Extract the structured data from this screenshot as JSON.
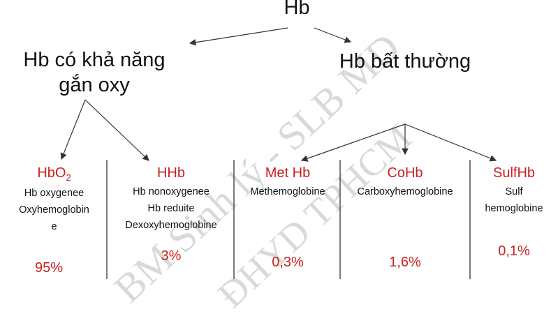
{
  "root": "Hb",
  "left_branch": {
    "line1": "Hb có khả năng",
    "line2": "gắn oxy"
  },
  "right_branch": "Hb bất thường",
  "columns": [
    {
      "title_main": "HbO",
      "title_sub": "2",
      "desc": [
        "Hb oxygenee",
        "Oxyhemoglobin",
        "e"
      ],
      "percent": "95%"
    },
    {
      "title_main": "HHb",
      "title_sub": "",
      "desc": [
        "Hb nonoxygenee",
        "Hb reduite",
        "Dexoxyhemoglobine"
      ],
      "percent": "3%"
    },
    {
      "title_main": "Met Hb",
      "title_sub": "",
      "desc": [
        "Methemoglobine"
      ],
      "percent": "0,3%"
    },
    {
      "title_main": "CoHb",
      "title_sub": "",
      "desc": [
        "Carboxyhemoglobine"
      ],
      "percent": "1,6%"
    },
    {
      "title_main": "SulfHb",
      "title_sub": "",
      "desc": [
        "Sulf",
        "hemoglobine"
      ],
      "percent": "0,1%"
    }
  ],
  "watermark": {
    "line1": "BM Sinh lý - SLB MD",
    "line2": "ĐHYD TPHCM"
  },
  "colors": {
    "title_red": "#c8201f",
    "text": "#111111",
    "watermark": "#d9d9d9"
  }
}
